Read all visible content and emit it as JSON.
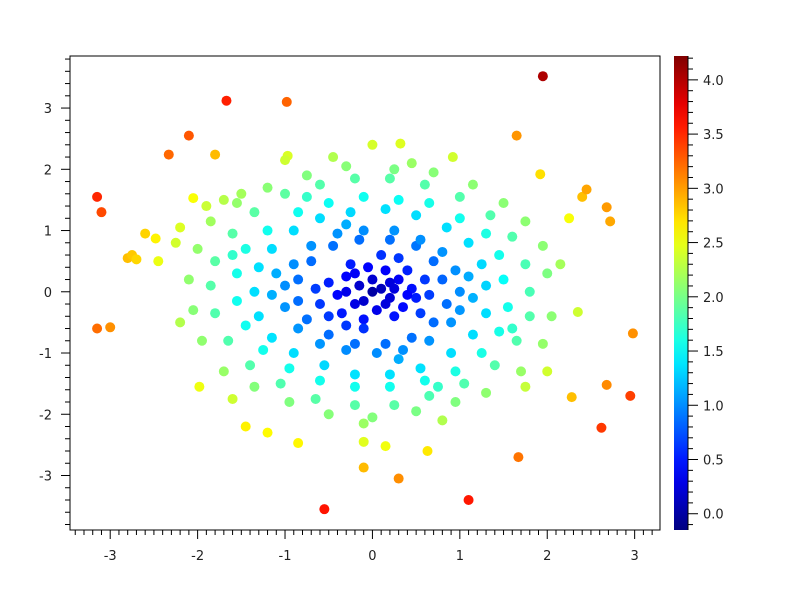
{
  "chart_data": {
    "type": "scatter",
    "title": "",
    "xlabel": "",
    "ylabel": "",
    "xlim": [
      -3.46,
      3.29
    ],
    "ylim": [
      -3.89,
      3.85
    ],
    "xticks": [
      "-3",
      "-2",
      "-1",
      "0",
      "1",
      "2",
      "3"
    ],
    "xtick_values": [
      -3,
      -2,
      -1,
      0,
      1,
      2,
      3
    ],
    "yticks": [
      "-3",
      "-2",
      "-1",
      "0",
      "1",
      "2",
      "3"
    ],
    "ytick_values": [
      -3,
      -2,
      -1,
      0,
      1,
      2,
      3
    ],
    "grid": false,
    "colormap": "jet",
    "colorbar": {
      "range": [
        -0.15,
        4.22
      ],
      "ticks": [
        "0.0",
        "0.5",
        "1.0",
        "1.5",
        "2.0",
        "2.5",
        "3.0",
        "3.5",
        "4.0"
      ],
      "tick_values": [
        0,
        0.5,
        1,
        1.5,
        2,
        2.5,
        3,
        3.5,
        4
      ]
    },
    "points": [
      [
        1.95,
        3.52
      ],
      [
        -1.67,
        3.12
      ],
      [
        -0.98,
        3.1
      ],
      [
        -2.1,
        2.55
      ],
      [
        -2.33,
        2.24
      ],
      [
        -1.8,
        2.24
      ],
      [
        1.65,
        2.55
      ],
      [
        -3.15,
        1.55
      ],
      [
        -3.1,
        1.3
      ],
      [
        -2.05,
        1.53
      ],
      [
        -2.6,
        0.95
      ],
      [
        -2.48,
        0.87
      ],
      [
        -2.8,
        0.55
      ],
      [
        -2.75,
        0.6
      ],
      [
        -2.7,
        0.53
      ],
      [
        -2.45,
        0.5
      ],
      [
        -3.15,
        -0.6
      ],
      [
        -3.0,
        -0.58
      ],
      [
        2.68,
        1.38
      ],
      [
        2.72,
        1.15
      ],
      [
        2.4,
        1.55
      ],
      [
        2.45,
        1.67
      ],
      [
        1.92,
        1.92
      ],
      [
        2.25,
        1.2
      ],
      [
        2.98,
        -0.68
      ],
      [
        2.68,
        -1.52
      ],
      [
        2.95,
        -1.7
      ],
      [
        2.62,
        -2.22
      ],
      [
        2.28,
        -1.72
      ],
      [
        1.67,
        -2.7
      ],
      [
        1.1,
        -3.4
      ],
      [
        0.3,
        -3.05
      ],
      [
        0.63,
        -2.6
      ],
      [
        -0.55,
        -3.55
      ],
      [
        -0.1,
        -2.87
      ],
      [
        -0.85,
        -2.47
      ],
      [
        -1.45,
        -2.2
      ],
      [
        -1.2,
        -2.3
      ],
      [
        -1.98,
        -1.55
      ],
      [
        2.15,
        0.45
      ],
      [
        2.35,
        -0.33
      ],
      [
        2.0,
        -1.3
      ],
      [
        0.0,
        2.4
      ],
      [
        0.32,
        2.42
      ],
      [
        0.92,
        2.2
      ],
      [
        -0.97,
        2.22
      ],
      [
        -1.0,
        2.15
      ],
      [
        -2.2,
        1.05
      ],
      [
        -2.25,
        0.8
      ],
      [
        -2.2,
        -0.5
      ],
      [
        0.15,
        -2.52
      ],
      [
        -0.1,
        -2.45
      ],
      [
        0,
        0
      ],
      [
        0.1,
        0.05
      ],
      [
        -0.15,
        0.1
      ],
      [
        0.2,
        -0.1
      ],
      [
        -0.2,
        -0.2
      ],
      [
        0.3,
        0.2
      ],
      [
        -0.3,
        0.25
      ],
      [
        0.05,
        -0.3
      ],
      [
        0.35,
        -0.25
      ],
      [
        -0.4,
        -0.05
      ],
      [
        0.45,
        0.05
      ],
      [
        -0.05,
        0.4
      ],
      [
        0.15,
        0.35
      ],
      [
        -0.35,
        -0.35
      ],
      [
        0.25,
        -0.4
      ],
      [
        -0.1,
        -0.45
      ],
      [
        0.5,
        -0.1
      ],
      [
        -0.5,
        0.15
      ],
      [
        0.4,
        0.35
      ],
      [
        -0.25,
        0.45
      ],
      [
        0.6,
        0.2
      ],
      [
        -0.6,
        -0.2
      ],
      [
        0.55,
        -0.35
      ],
      [
        -0.5,
        -0.4
      ],
      [
        0.1,
        0.6
      ],
      [
        -0.1,
        -0.6
      ],
      [
        0.65,
        -0.05
      ],
      [
        -0.65,
        0.05
      ],
      [
        0.3,
        0.55
      ],
      [
        -0.3,
        -0.55
      ],
      [
        0.0,
        0.2
      ],
      [
        0.2,
        0.15
      ],
      [
        -0.1,
        -0.15
      ],
      [
        0.25,
        0.05
      ],
      [
        -0.3,
        0.0
      ],
      [
        0.4,
        -0.05
      ],
      [
        0.15,
        -0.2
      ],
      [
        -0.2,
        0.3
      ],
      [
        0.8,
        0.2
      ],
      [
        0.7,
        0.5
      ],
      [
        0.5,
        0.75
      ],
      [
        0.2,
        0.85
      ],
      [
        -0.15,
        0.85
      ],
      [
        -0.45,
        0.75
      ],
      [
        -0.7,
        0.5
      ],
      [
        -0.85,
        0.2
      ],
      [
        -0.85,
        -0.15
      ],
      [
        -0.75,
        -0.45
      ],
      [
        -0.5,
        -0.7
      ],
      [
        -0.2,
        -0.85
      ],
      [
        0.15,
        -0.85
      ],
      [
        0.45,
        -0.75
      ],
      [
        0.7,
        -0.5
      ],
      [
        0.85,
        -0.2
      ],
      [
        1.0,
        0.0
      ],
      [
        0.95,
        0.35
      ],
      [
        0.8,
        0.65
      ],
      [
        0.55,
        0.85
      ],
      [
        0.25,
        1.0
      ],
      [
        -0.1,
        1.0
      ],
      [
        -0.4,
        0.95
      ],
      [
        -0.7,
        0.75
      ],
      [
        -0.9,
        0.45
      ],
      [
        -1.0,
        0.1
      ],
      [
        -1.0,
        -0.25
      ],
      [
        -0.85,
        -0.6
      ],
      [
        -0.6,
        -0.85
      ],
      [
        -0.3,
        -0.95
      ],
      [
        0.05,
        -1.0
      ],
      [
        0.35,
        -0.95
      ],
      [
        0.65,
        -0.8
      ],
      [
        0.9,
        -0.5
      ],
      [
        1.0,
        -0.3
      ],
      [
        1.1,
        0.25
      ],
      [
        -1.1,
        0.3
      ],
      [
        0.3,
        -1.1
      ],
      [
        -0.3,
        1.1
      ],
      [
        1.15,
        -0.1
      ],
      [
        -1.15,
        -0.05
      ],
      [
        1.3,
        0.1
      ],
      [
        1.25,
        0.45
      ],
      [
        1.1,
        0.8
      ],
      [
        0.85,
        1.05
      ],
      [
        0.5,
        1.25
      ],
      [
        0.15,
        1.35
      ],
      [
        -0.25,
        1.3
      ],
      [
        -0.6,
        1.2
      ],
      [
        -0.9,
        1.0
      ],
      [
        -1.15,
        0.7
      ],
      [
        -1.3,
        0.4
      ],
      [
        -1.35,
        0.0
      ],
      [
        -1.3,
        -0.4
      ],
      [
        -1.15,
        -0.75
      ],
      [
        -0.9,
        -1.0
      ],
      [
        -0.55,
        -1.2
      ],
      [
        -0.2,
        -1.35
      ],
      [
        0.2,
        -1.35
      ],
      [
        0.55,
        -1.25
      ],
      [
        0.9,
        -1.0
      ],
      [
        1.15,
        -0.7
      ],
      [
        1.3,
        -0.35
      ],
      [
        1.5,
        0.2
      ],
      [
        1.45,
        0.6
      ],
      [
        1.3,
        0.95
      ],
      [
        1.0,
        1.2
      ],
      [
        0.65,
        1.45
      ],
      [
        0.3,
        1.5
      ],
      [
        -0.1,
        1.55
      ],
      [
        -0.5,
        1.45
      ],
      [
        -0.85,
        1.3
      ],
      [
        -1.2,
        1.0
      ],
      [
        -1.45,
        0.7
      ],
      [
        -1.55,
        0.3
      ],
      [
        -1.55,
        -0.15
      ],
      [
        -1.45,
        -0.55
      ],
      [
        -1.25,
        -0.95
      ],
      [
        -0.95,
        -1.25
      ],
      [
        -0.6,
        -1.45
      ],
      [
        -0.2,
        -1.55
      ],
      [
        0.2,
        -1.55
      ],
      [
        0.6,
        -1.45
      ],
      [
        0.95,
        -1.3
      ],
      [
        1.25,
        -1.0
      ],
      [
        1.45,
        -0.65
      ],
      [
        1.55,
        -0.25
      ],
      [
        1.6,
        -0.6
      ],
      [
        -1.6,
        0.6
      ],
      [
        0.75,
        -1.55
      ],
      [
        -0.75,
        1.55
      ],
      [
        1.8,
        0.0
      ],
      [
        1.75,
        0.45
      ],
      [
        1.6,
        0.9
      ],
      [
        1.35,
        1.25
      ],
      [
        1.0,
        1.55
      ],
      [
        0.6,
        1.75
      ],
      [
        0.2,
        1.85
      ],
      [
        -0.2,
        1.85
      ],
      [
        -0.6,
        1.75
      ],
      [
        -1.0,
        1.6
      ],
      [
        -1.35,
        1.3
      ],
      [
        -1.6,
        0.95
      ],
      [
        -1.8,
        0.5
      ],
      [
        -1.85,
        0.1
      ],
      [
        -1.8,
        -0.35
      ],
      [
        -1.65,
        -0.8
      ],
      [
        -1.4,
        -1.2
      ],
      [
        -1.05,
        -1.5
      ],
      [
        -0.65,
        -1.75
      ],
      [
        -0.2,
        -1.85
      ],
      [
        0.25,
        -1.85
      ],
      [
        0.65,
        -1.7
      ],
      [
        1.05,
        -1.5
      ],
      [
        1.4,
        -1.2
      ],
      [
        1.65,
        -0.8
      ],
      [
        1.8,
        -0.4
      ],
      [
        2.0,
        0.3
      ],
      [
        1.95,
        0.75
      ],
      [
        1.75,
        1.15
      ],
      [
        1.5,
        1.45
      ],
      [
        1.15,
        1.75
      ],
      [
        0.7,
        1.95
      ],
      [
        0.25,
        2.0
      ],
      [
        -0.3,
        2.05
      ],
      [
        -0.75,
        1.9
      ],
      [
        -1.2,
        1.7
      ],
      [
        -1.55,
        1.45
      ],
      [
        -1.85,
        1.15
      ],
      [
        -2.0,
        0.7
      ],
      [
        -2.1,
        0.2
      ],
      [
        -2.05,
        -0.3
      ],
      [
        -1.95,
        -0.8
      ],
      [
        -1.7,
        -1.3
      ],
      [
        -1.35,
        -1.55
      ],
      [
        -0.95,
        -1.8
      ],
      [
        -0.5,
        -2.0
      ],
      [
        0.0,
        -2.05
      ],
      [
        0.5,
        -1.95
      ],
      [
        0.95,
        -1.8
      ],
      [
        1.3,
        -1.65
      ],
      [
        1.7,
        -1.3
      ],
      [
        1.95,
        -0.85
      ],
      [
        2.05,
        -0.4
      ],
      [
        -1.9,
        1.4
      ],
      [
        -1.7,
        1.5
      ],
      [
        -1.5,
        1.6
      ],
      [
        0.8,
        -2.1
      ],
      [
        -0.1,
        -2.15
      ],
      [
        0.45,
        2.1
      ],
      [
        -0.45,
        2.2
      ],
      [
        1.75,
        -1.55
      ],
      [
        -1.6,
        -1.75
      ]
    ]
  }
}
